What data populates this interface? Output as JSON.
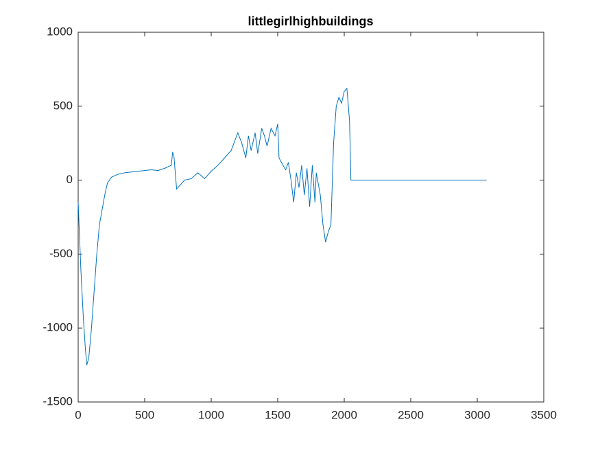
{
  "chart_data": {
    "type": "line",
    "title": "littlegirlhighbuildings",
    "x": [
      0,
      20,
      40,
      55,
      65,
      80,
      100,
      120,
      140,
      160,
      180,
      200,
      220,
      250,
      300,
      350,
      400,
      450,
      500,
      550,
      600,
      650,
      700,
      710,
      720,
      740,
      770,
      800,
      850,
      900,
      950,
      1000,
      1050,
      1100,
      1150,
      1200,
      1230,
      1260,
      1280,
      1300,
      1330,
      1350,
      1380,
      1400,
      1420,
      1450,
      1480,
      1500,
      1510,
      1540,
      1560,
      1580,
      1600,
      1620,
      1640,
      1660,
      1680,
      1700,
      1720,
      1740,
      1760,
      1780,
      1790,
      1800,
      1820,
      1840,
      1860,
      1880,
      1900,
      1920,
      1940,
      1960,
      1980,
      2000,
      2020,
      2040,
      2050,
      3070
    ],
    "series": [
      {
        "color": "#0072bd",
        "values": [
          -150,
          -600,
          -950,
          -1150,
          -1250,
          -1200,
          -1000,
          -750,
          -500,
          -300,
          -200,
          -100,
          -20,
          20,
          40,
          50,
          55,
          60,
          65,
          70,
          65,
          80,
          100,
          190,
          160,
          -60,
          -30,
          0,
          10,
          50,
          10,
          60,
          100,
          150,
          200,
          320,
          250,
          150,
          300,
          200,
          320,
          180,
          350,
          300,
          230,
          350,
          300,
          380,
          150,
          100,
          70,
          120,
          0,
          -150,
          50,
          -50,
          100,
          -100,
          80,
          -180,
          100,
          -150,
          50,
          0,
          -100,
          -300,
          -420,
          -350,
          -300,
          250,
          500,
          560,
          520,
          600,
          620,
          400,
          0,
          0
        ]
      }
    ],
    "xlim": [
      0,
      3500
    ],
    "xticks": [
      0,
      500,
      1000,
      1500,
      2000,
      2500,
      3000,
      3500
    ],
    "ylim": [
      -1500,
      1000
    ],
    "yticks": [
      -1500,
      -1000,
      -500,
      0,
      500,
      1000
    ]
  }
}
